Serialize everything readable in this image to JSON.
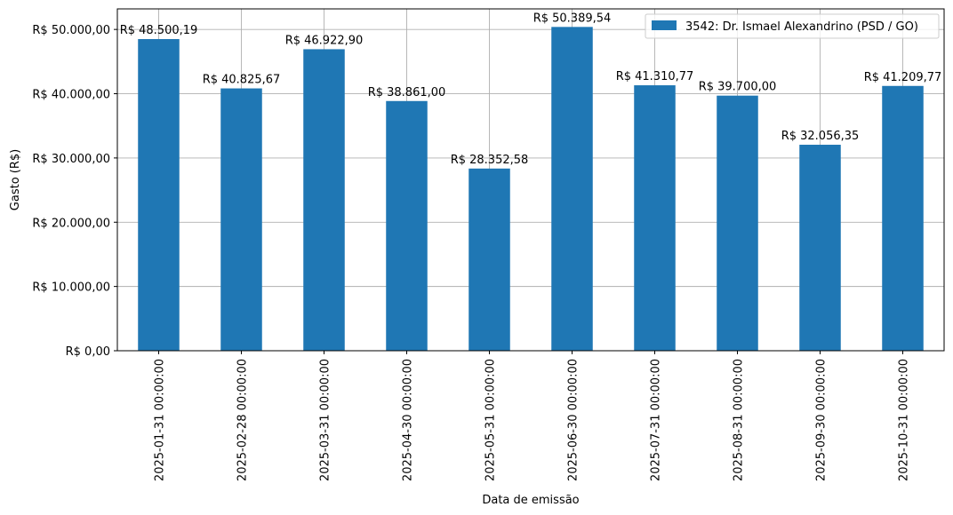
{
  "chart_data": {
    "type": "bar",
    "categories": [
      "2025-01-31 00:00:00",
      "2025-02-28 00:00:00",
      "2025-03-31 00:00:00",
      "2025-04-30 00:00:00",
      "2025-05-31 00:00:00",
      "2025-06-30 00:00:00",
      "2025-07-31 00:00:00",
      "2025-08-31 00:00:00",
      "2025-09-30 00:00:00",
      "2025-10-31 00:00:00"
    ],
    "series": [
      {
        "name": "3542: Dr. Ismael Alexandrino (PSD / GO)",
        "color": "#1f77b4",
        "values": [
          48500.19,
          40825.67,
          46922.9,
          38861.0,
          28352.58,
          50389.54,
          41310.77,
          39700.0,
          32056.35,
          41209.77
        ],
        "value_labels": [
          "R$ 48.500,19",
          "R$ 40.825,67",
          "R$ 46.922,90",
          "R$ 38.861,00",
          "R$ 28.352,58",
          "R$ 50.389,54",
          "R$ 41.310,77",
          "R$ 39.700,00",
          "R$ 32.056,35",
          "R$ 41.209,77"
        ]
      }
    ],
    "xlabel": "Data de emissão",
    "ylabel": "Gasto (R$)",
    "ylim": [
      0,
      53200
    ],
    "yticks": [
      0,
      10000,
      20000,
      30000,
      40000,
      50000
    ],
    "ytick_labels": [
      "R$ 0,00",
      "R$ 10.000,00",
      "R$ 20.000,00",
      "R$ 30.000,00",
      "R$ 40.000,00",
      "R$ 50.000,00"
    ],
    "grid": true,
    "legend_position": "top-right"
  }
}
